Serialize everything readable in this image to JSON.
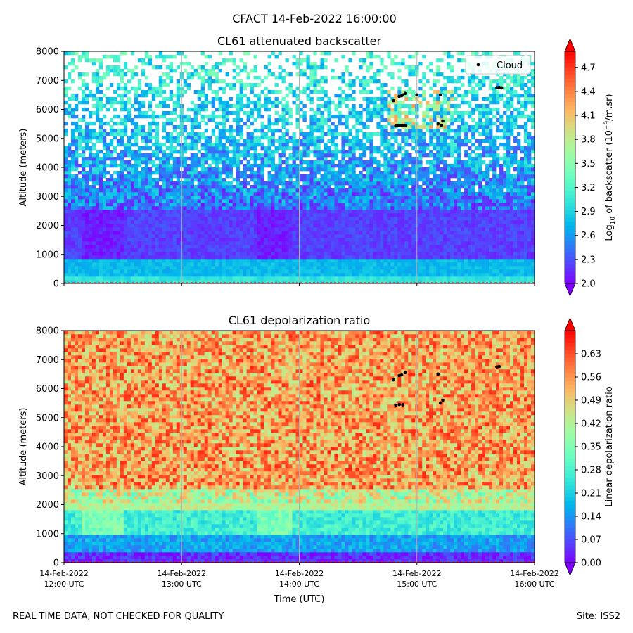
{
  "suptitle": "CFACT 14-Feb-2022 16:00:00",
  "footer": {
    "left": "REAL TIME DATA, NOT CHECKED FOR QUALITY",
    "right": "Site: ISS2"
  },
  "chart_data": [
    {
      "type": "heatmap",
      "title": "CL61 attenuated backscatter",
      "ylabel": "Altitude (meters)",
      "xlabel": "",
      "ylim": [
        0,
        8000
      ],
      "yticks": [
        0,
        1000,
        2000,
        3000,
        4000,
        5000,
        6000,
        7000,
        8000
      ],
      "x_hours": [
        12,
        16
      ],
      "colorbar": {
        "label_main": "Log",
        "label_sub": "10",
        "label_rest": " of backscatter (10",
        "label_sup": "−9",
        "label_end": "/m.sr)",
        "range": [
          2.0,
          4.9
        ],
        "ticks": [
          "2.0",
          "2.3",
          "2.6",
          "2.9",
          "3.2",
          "3.5",
          "3.8",
          "4.1",
          "4.4",
          "4.7"
        ],
        "cmap": "rainbow"
      },
      "legend": {
        "position": "top-right",
        "entries": [
          "Cloud"
        ]
      },
      "cloud_points": [
        [
          14.8,
          6300
        ],
        [
          14.85,
          6450
        ],
        [
          14.87,
          6470
        ],
        [
          14.88,
          6500
        ],
        [
          14.9,
          6550
        ],
        [
          14.82,
          5430
        ],
        [
          14.84,
          5450
        ],
        [
          14.86,
          5440
        ],
        [
          14.88,
          5450
        ],
        [
          14.9,
          5440
        ],
        [
          15.0,
          6500
        ],
        [
          15.2,
          6500
        ],
        [
          15.18,
          5500
        ],
        [
          15.21,
          5450
        ],
        [
          15.22,
          5600
        ],
        [
          15.68,
          6750
        ],
        [
          15.7,
          6760
        ],
        [
          15.72,
          6740
        ]
      ]
    },
    {
      "type": "heatmap",
      "title": "CL61 depolarization ratio",
      "ylabel": "Altitude (meters)",
      "xlabel": "Time (UTC)",
      "ylim": [
        0,
        8000
      ],
      "yticks": [
        0,
        1000,
        2000,
        3000,
        4000,
        5000,
        6000,
        7000,
        8000
      ],
      "x_hours": [
        12,
        16
      ],
      "colorbar": {
        "label_main": "Linear depolarization ratio",
        "range": [
          0.0,
          0.7
        ],
        "ticks": [
          "0.00",
          "0.07",
          "0.14",
          "0.21",
          "0.28",
          "0.35",
          "0.42",
          "0.49",
          "0.56",
          "0.63"
        ],
        "cmap": "rainbow"
      },
      "cloud_points": [
        [
          14.8,
          6300
        ],
        [
          14.85,
          6450
        ],
        [
          14.87,
          6470
        ],
        [
          14.9,
          6550
        ],
        [
          14.82,
          5430
        ],
        [
          14.85,
          5450
        ],
        [
          14.88,
          5440
        ],
        [
          15.18,
          6500
        ],
        [
          15.2,
          5500
        ],
        [
          15.22,
          5600
        ],
        [
          15.68,
          6750
        ],
        [
          15.7,
          6760
        ]
      ]
    }
  ],
  "time_axis": {
    "ticks": [
      {
        "hour": 12,
        "line1": "14-Feb-2022",
        "line2": "12:00 UTC"
      },
      {
        "hour": 13,
        "line1": "14-Feb-2022",
        "line2": "13:00 UTC"
      },
      {
        "hour": 14,
        "line1": "14-Feb-2022",
        "line2": "14:00 UTC"
      },
      {
        "hour": 15,
        "line1": "14-Feb-2022",
        "line2": "15:00 UTC"
      },
      {
        "hour": 16,
        "line1": "14-Feb-2022",
        "line2": "16:00 UTC"
      }
    ]
  }
}
